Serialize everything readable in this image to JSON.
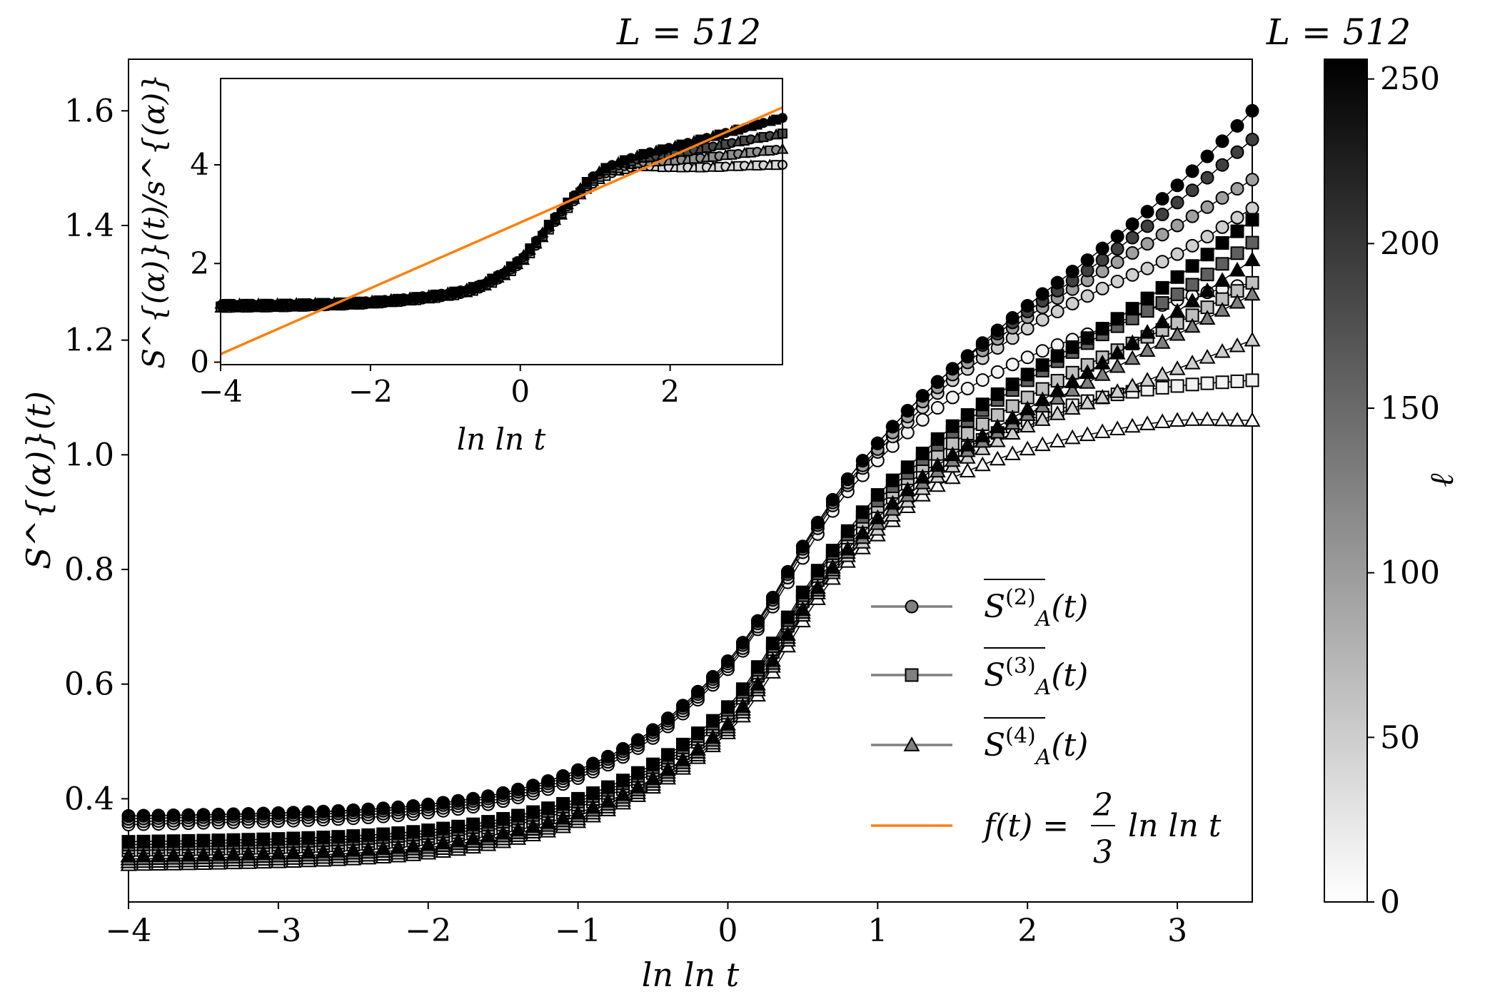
{
  "chart_data": [
    {
      "type": "line",
      "title": "L = 512",
      "xlabel": "ln ln t",
      "ylabel": "S^{(α)}(t)",
      "xlim": [
        -4,
        3.5
      ],
      "ylim": [
        0.22,
        1.69
      ],
      "xticks": [
        -4,
        -3,
        -2,
        -1,
        0,
        1,
        2,
        3
      ],
      "xtick_labels": [
        "−4",
        "−3",
        "−2",
        "−1",
        "0",
        "1",
        "2",
        "3"
      ],
      "yticks": [
        0.4,
        0.6,
        0.8,
        1.0,
        1.2,
        1.4,
        1.6
      ],
      "ytick_labels": [
        "0.4",
        "0.6",
        "0.8",
        "1.0",
        "1.2",
        "1.4",
        "1.6"
      ],
      "grid": false,
      "legend_position": "lower-right",
      "legend": [
        {
          "marker": "circle",
          "label_base": "S",
          "label_sup": "(2)",
          "label_sub": "A",
          "label_tail": "(t)"
        },
        {
          "marker": "square",
          "label_base": "S",
          "label_sup": "(3)",
          "label_sub": "A",
          "label_tail": "(t)"
        },
        {
          "marker": "triangle",
          "label_base": "S",
          "label_sup": "(4)",
          "label_sub": "A",
          "label_tail": "(t)"
        },
        {
          "marker": "line",
          "label_lhs": "f(t) = ",
          "label_num": "2",
          "label_den": "3",
          "label_rhs": "ln ln t"
        }
      ],
      "x": [
        -4.0,
        -3.5,
        -3.0,
        -2.5,
        -2.0,
        -1.5,
        -1.0,
        -0.5,
        0.0,
        0.25,
        0.5,
        0.75,
        1.0,
        1.25,
        1.5,
        2.0,
        2.5,
        3.0,
        3.5
      ],
      "series": [
        {
          "marker": "circle",
          "ell": 256,
          "values": [
            0.37,
            0.372,
            0.375,
            0.38,
            0.39,
            0.41,
            0.45,
            0.52,
            0.64,
            0.73,
            0.84,
            0.94,
            1.02,
            1.09,
            1.15,
            1.26,
            1.36,
            1.47,
            1.6
          ]
        },
        {
          "marker": "circle",
          "ell": 192,
          "values": [
            0.37,
            0.372,
            0.375,
            0.38,
            0.39,
            0.41,
            0.45,
            0.52,
            0.64,
            0.73,
            0.84,
            0.94,
            1.02,
            1.09,
            1.15,
            1.25,
            1.34,
            1.44,
            1.55
          ]
        },
        {
          "marker": "circle",
          "ell": 96,
          "values": [
            0.365,
            0.368,
            0.371,
            0.376,
            0.386,
            0.406,
            0.446,
            0.516,
            0.636,
            0.726,
            0.836,
            0.935,
            1.01,
            1.08,
            1.14,
            1.24,
            1.32,
            1.4,
            1.48
          ]
        },
        {
          "marker": "circle",
          "ell": 48,
          "values": [
            0.36,
            0.363,
            0.366,
            0.371,
            0.381,
            0.401,
            0.441,
            0.511,
            0.631,
            0.72,
            0.83,
            0.93,
            1.005,
            1.07,
            1.13,
            1.22,
            1.29,
            1.35,
            1.43
          ]
        },
        {
          "marker": "circle",
          "ell": 12,
          "values": [
            0.355,
            0.358,
            0.361,
            0.366,
            0.376,
            0.396,
            0.436,
            0.506,
            0.626,
            0.715,
            0.82,
            0.92,
            0.99,
            1.05,
            1.1,
            1.17,
            1.22,
            1.27,
            1.3
          ]
        },
        {
          "marker": "square",
          "ell": 256,
          "values": [
            0.325,
            0.327,
            0.33,
            0.335,
            0.345,
            0.365,
            0.4,
            0.46,
            0.56,
            0.65,
            0.76,
            0.85,
            0.93,
            0.99,
            1.05,
            1.14,
            1.22,
            1.31,
            1.41
          ]
        },
        {
          "marker": "square",
          "ell": 160,
          "values": [
            0.32,
            0.322,
            0.325,
            0.33,
            0.34,
            0.36,
            0.395,
            0.455,
            0.555,
            0.645,
            0.755,
            0.845,
            0.92,
            0.98,
            1.04,
            1.13,
            1.21,
            1.28,
            1.37
          ]
        },
        {
          "marker": "square",
          "ell": 64,
          "values": [
            0.315,
            0.317,
            0.32,
            0.325,
            0.335,
            0.355,
            0.39,
            0.45,
            0.55,
            0.64,
            0.75,
            0.84,
            0.91,
            0.97,
            1.02,
            1.1,
            1.17,
            1.23,
            1.3
          ]
        },
        {
          "marker": "square",
          "ell": 12,
          "values": [
            0.31,
            0.312,
            0.315,
            0.32,
            0.33,
            0.35,
            0.385,
            0.445,
            0.545,
            0.635,
            0.745,
            0.83,
            0.9,
            0.96,
            1.0,
            1.06,
            1.1,
            1.12,
            1.13
          ]
        },
        {
          "marker": "triangle",
          "ell": 256,
          "values": [
            0.3,
            0.302,
            0.305,
            0.31,
            0.32,
            0.34,
            0.375,
            0.435,
            0.53,
            0.62,
            0.73,
            0.82,
            0.89,
            0.95,
            1.0,
            1.08,
            1.16,
            1.25,
            1.34
          ]
        },
        {
          "marker": "triangle",
          "ell": 128,
          "values": [
            0.295,
            0.297,
            0.3,
            0.305,
            0.315,
            0.335,
            0.37,
            0.43,
            0.525,
            0.615,
            0.725,
            0.815,
            0.88,
            0.94,
            0.99,
            1.07,
            1.14,
            1.21,
            1.28
          ]
        },
        {
          "marker": "triangle",
          "ell": 48,
          "values": [
            0.29,
            0.292,
            0.295,
            0.3,
            0.31,
            0.33,
            0.365,
            0.425,
            0.52,
            0.61,
            0.72,
            0.81,
            0.87,
            0.93,
            0.98,
            1.05,
            1.1,
            1.15,
            1.2
          ]
        },
        {
          "marker": "triangle",
          "ell": 8,
          "values": [
            0.285,
            0.287,
            0.29,
            0.295,
            0.305,
            0.325,
            0.36,
            0.42,
            0.515,
            0.6,
            0.71,
            0.8,
            0.86,
            0.92,
            0.96,
            1.01,
            1.04,
            1.06,
            1.06
          ]
        }
      ]
    },
    {
      "type": "line",
      "position": "inset",
      "xlabel": "ln ln t",
      "ylabel": "S^{(α)}(t)/s^{(α)}",
      "xlim": [
        -4,
        3.5
      ],
      "ylim": [
        -0.05,
        5.75
      ],
      "xticks": [
        -4,
        -2,
        0,
        2
      ],
      "xtick_labels": [
        "−4",
        "−2",
        "0",
        "2"
      ],
      "yticks": [
        0,
        2,
        4
      ],
      "ytick_labels": [
        "0",
        "2",
        "4"
      ],
      "x": [
        -4.0,
        -3.0,
        -2.0,
        -1.0,
        -0.5,
        0.0,
        0.5,
        1.0,
        1.5,
        2.0,
        2.5,
        3.0,
        3.5
      ],
      "collapse_upper": [
        1.18,
        1.19,
        1.24,
        1.4,
        1.6,
        2.1,
        3.0,
        3.8,
        4.15,
        4.35,
        4.55,
        4.75,
        4.95
      ],
      "collapse_lower": [
        1.1,
        1.12,
        1.18,
        1.33,
        1.52,
        2.0,
        2.9,
        3.65,
        3.95,
        3.95,
        3.95,
        3.98,
        4.0
      ],
      "line": {
        "label": "f(t) = (2/3) ln ln t",
        "slope": 0.6667,
        "intercept": 2.83,
        "color": "#ff7f0e"
      }
    },
    {
      "type": "colorbar",
      "title": "L = 512",
      "label": "ℓ",
      "range": [
        0,
        256
      ],
      "ticks": [
        0,
        50,
        100,
        150,
        200,
        250
      ],
      "tick_labels": [
        "0",
        "50",
        "100",
        "150",
        "200",
        "250"
      ],
      "colormap": "Greys",
      "color_low": "#ffffff",
      "color_high": "#000000"
    }
  ]
}
